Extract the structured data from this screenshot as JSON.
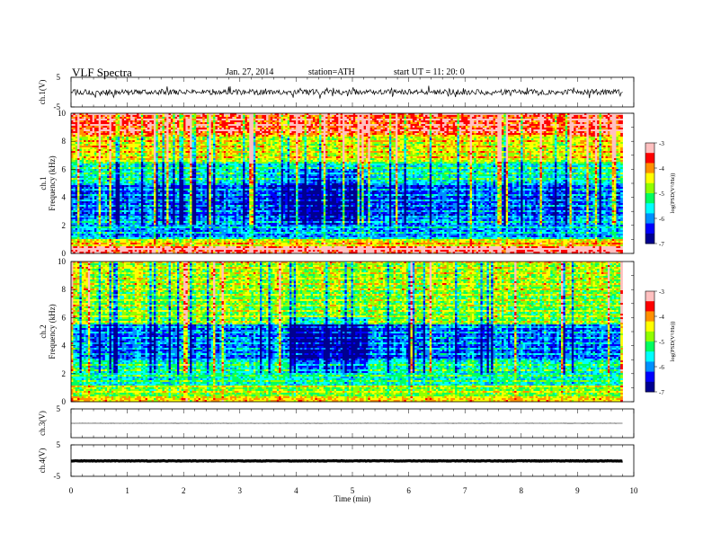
{
  "header": {
    "title": "VLF  Spectra",
    "date": "Jan. 27, 2014",
    "station": "station=ATH",
    "start": "start  UT  =   11: 20: 0"
  },
  "chart_data": [
    {
      "type": "line",
      "panel": "ch1-waveform",
      "ylabel": "ch.1(V)",
      "ylim": [
        -5,
        5
      ],
      "yticks": [
        "5",
        "-5"
      ],
      "x_range_min": [
        0,
        9.8
      ],
      "baseline_v": 0,
      "amplitude_v": 1.3,
      "description_values": {
        "typical_min": -2,
        "typical_max": 2
      }
    },
    {
      "type": "heatmap",
      "panel": "ch1-spectrogram",
      "ylabel_top": "ch.1",
      "ylabel": "Frequency  (kHz)",
      "ylim": [
        0,
        10
      ],
      "yticks": [
        "0",
        "2",
        "4",
        "6",
        "8",
        "10"
      ],
      "xlim": [
        0,
        10
      ],
      "data_end_min": 9.8,
      "colorbar": {
        "label": "log(PSD(V²/Hz))",
        "min": -7,
        "max": -3,
        "ticks": [
          "-3",
          "-4",
          "-5",
          "-6",
          "-7"
        ]
      },
      "bands_khz": [
        {
          "from": 0,
          "to": 0.5,
          "logpsd": -3.4
        },
        {
          "from": 0.5,
          "to": 1.0,
          "logpsd": -4.5
        },
        {
          "from": 1.0,
          "to": 2.6,
          "logpsd": -6.0
        },
        {
          "from": 2.6,
          "to": 5.0,
          "logpsd": -6.3
        },
        {
          "from": 5.0,
          "to": 6.5,
          "logpsd": -5.6
        },
        {
          "from": 6.5,
          "to": 8.5,
          "logpsd": -4.6
        },
        {
          "from": 8.5,
          "to": 10,
          "logpsd": -3.7
        }
      ],
      "quiet_interval_min": [
        3.9,
        5.3
      ]
    },
    {
      "type": "heatmap",
      "panel": "ch2-spectrogram",
      "ylabel_top": "ch.2",
      "ylabel": "Frequency  (kHz)",
      "ylim": [
        0,
        10
      ],
      "yticks": [
        "0",
        "2",
        "4",
        "6",
        "8",
        "10"
      ],
      "xlim": [
        0,
        10
      ],
      "data_end_min": 9.8,
      "colorbar": {
        "label": "log(PSD(V²/Hz))",
        "min": -7,
        "max": -3,
        "ticks": [
          "-3",
          "-4",
          "-5",
          "-6",
          "-7"
        ]
      },
      "bands_khz": [
        {
          "from": 0,
          "to": 0.3,
          "logpsd": -4.2
        },
        {
          "from": 0.3,
          "to": 1.2,
          "logpsd": -4.9
        },
        {
          "from": 1.2,
          "to": 3.0,
          "logpsd": -5.5
        },
        {
          "from": 3.0,
          "to": 5.5,
          "logpsd": -6.2
        },
        {
          "from": 5.5,
          "to": 8.0,
          "logpsd": -5.0
        },
        {
          "from": 8.0,
          "to": 10,
          "logpsd": -4.8
        }
      ],
      "quiet_interval_min": [
        3.9,
        5.3
      ]
    },
    {
      "type": "line",
      "panel": "ch3-waveform",
      "ylabel": "ch.3(V)",
      "ylim": [
        -5,
        5
      ],
      "yticks": [
        "5"
      ],
      "x_range_min": [
        0,
        9.8
      ],
      "baseline_v": 0,
      "amplitude_v": 0.05
    },
    {
      "type": "line",
      "panel": "ch4-waveform",
      "ylabel": "ch.4(V)",
      "ylim": [
        -5,
        5
      ],
      "yticks": [
        "5",
        "-5"
      ],
      "x_range_min": [
        0,
        9.8
      ],
      "baseline_v": -0.1,
      "amplitude_v": 0.15
    }
  ],
  "x_axis": {
    "xlabel": "Time  (min)",
    "xlim": [
      0,
      10
    ],
    "ticks": [
      "0",
      "1",
      "2",
      "3",
      "4",
      "5",
      "6",
      "7",
      "8",
      "9",
      "10"
    ]
  },
  "colors": {
    "colormap": [
      "#000090",
      "#0000ff",
      "#0090ff",
      "#00ffff",
      "#00ff60",
      "#90ff00",
      "#ffff00",
      "#ff9000",
      "#ff0000",
      "#ffc0c0"
    ]
  }
}
